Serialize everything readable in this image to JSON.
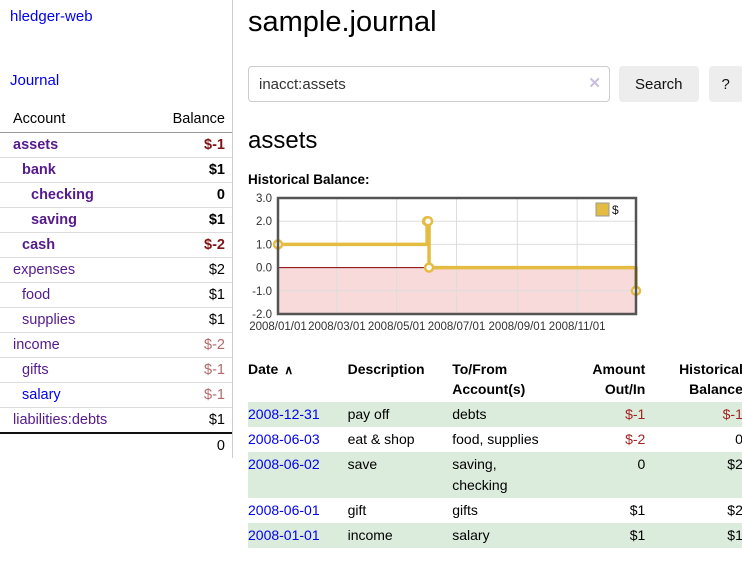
{
  "app": {
    "name": "hledger-web"
  },
  "colors": {
    "link_purple": "#551a8b",
    "link_blue": "#0000ee",
    "neg_dark": "#7f1414",
    "neg_table": "#a22323",
    "neg_muted": "#b06a6a",
    "text_black": "#000000",
    "row_green": "#dcecdc"
  },
  "sidebar": {
    "journal_link": "Journal",
    "accounts_table": {
      "headers": {
        "account": "Account",
        "balance": "Balance"
      },
      "rows": [
        {
          "name": "assets",
          "indent": 1,
          "bold": true,
          "balance": "$-1",
          "balance_color": "#7f1414",
          "link_color": "#551a8b"
        },
        {
          "name": "bank",
          "indent": 2,
          "bold": true,
          "balance": "$1",
          "balance_color": "#000000",
          "link_color": "#551a8b"
        },
        {
          "name": "checking",
          "indent": 3,
          "bold": true,
          "balance": "0",
          "balance_color": "#000000",
          "link_color": "#551a8b"
        },
        {
          "name": "saving",
          "indent": 3,
          "bold": true,
          "balance": "$1",
          "balance_color": "#000000",
          "link_color": "#551a8b"
        },
        {
          "name": "cash",
          "indent": 2,
          "bold": true,
          "balance": "$-2",
          "balance_color": "#7f1414",
          "link_color": "#551a8b"
        },
        {
          "name": "expenses",
          "indent": 1,
          "bold": false,
          "balance": "$2",
          "balance_color": "#000000",
          "link_color": "#551a8b"
        },
        {
          "name": "food",
          "indent": 2,
          "bold": false,
          "balance": "$1",
          "balance_color": "#000000",
          "link_color": "#551a8b"
        },
        {
          "name": "supplies",
          "indent": 2,
          "bold": false,
          "balance": "$1",
          "balance_color": "#000000",
          "link_color": "#551a8b"
        },
        {
          "name": "income",
          "indent": 1,
          "bold": false,
          "balance": "$-2",
          "balance_color": "#b06a6a",
          "link_color": "#551a8b"
        },
        {
          "name": "gifts",
          "indent": 2,
          "bold": false,
          "balance": "$-1",
          "balance_color": "#b06a6a",
          "link_color": "#551a8b"
        },
        {
          "name": "salary",
          "indent": 2,
          "bold": false,
          "balance": "$-1",
          "balance_color": "#b06a6a",
          "link_color": "#0000ee"
        },
        {
          "name": "liabilities:debts",
          "indent": 1,
          "bold": false,
          "balance": "$1",
          "balance_color": "#000000",
          "link_color": "#551a8b"
        }
      ],
      "total": "0"
    }
  },
  "main": {
    "title": "sample.journal",
    "search": {
      "value": "inacct:assets",
      "clear_icon": "✕",
      "button_label": "Search",
      "help_label": "?"
    },
    "account_heading": "assets",
    "chart_label": "Historical Balance:"
  },
  "chart_data": {
    "type": "line",
    "step": true,
    "title": "Historical Balance",
    "legend": "$",
    "legend_position": "top-right",
    "grid": true,
    "series": [
      {
        "name": "$",
        "color": "#e4bc42",
        "points": [
          [
            "2008-01-01",
            1
          ],
          [
            "2008-06-01",
            2
          ],
          [
            "2008-06-02",
            2
          ],
          [
            "2008-06-03",
            0
          ],
          [
            "2008-12-31",
            -1
          ]
        ]
      }
    ],
    "x_range": [
      "2008-01-01",
      "2008-12-31"
    ],
    "ylim": [
      -2,
      3
    ],
    "yticks": [
      3,
      2,
      1,
      0,
      -1,
      -2
    ],
    "ytick_labels": [
      "3.0",
      "2.0",
      "1.0",
      "0.0",
      "-1.0",
      "-2.0"
    ],
    "xticks": [
      "2008-01-01",
      "2008-03-01",
      "2008-05-01",
      "2008-07-01",
      "2008-09-01",
      "2008-11-01"
    ],
    "xtick_labels": [
      "2008/01/01",
      "2008/03/01",
      "2008/05/01",
      "2008/07/01",
      "2008/09/01",
      "2008/11/01"
    ],
    "negative_fill": "#f9dada",
    "zero_line_color": "#8b0000",
    "grid_color": "#dddddd",
    "border_color": "#545454"
  },
  "register_table": {
    "headers": {
      "date": "Date",
      "sort_icon": "∧",
      "description": "Description",
      "accounts": "To/From Account(s)",
      "amount": "Amount Out/In",
      "balance": "Historical Balance"
    },
    "rows": [
      {
        "date": "2008-12-31",
        "description": "pay off",
        "accounts": "debts",
        "amount": "$-1",
        "amount_color": "#a22323",
        "balance": "$-1",
        "balance_color": "#a22323",
        "shaded": true
      },
      {
        "date": "2008-06-03",
        "description": "eat & shop",
        "accounts": "food, supplies",
        "amount": "$-2",
        "amount_color": "#a22323",
        "balance": "0",
        "balance_color": "#000000",
        "shaded": false
      },
      {
        "date": "2008-06-02",
        "description": "save",
        "accounts": "saving, checking",
        "amount": "0",
        "amount_color": "#000000",
        "balance": "$2",
        "balance_color": "#000000",
        "shaded": true
      },
      {
        "date": "2008-06-01",
        "description": "gift",
        "accounts": "gifts",
        "amount": "$1",
        "amount_color": "#000000",
        "balance": "$2",
        "balance_color": "#000000",
        "shaded": false
      },
      {
        "date": "2008-01-01",
        "description": "income",
        "accounts": "salary",
        "amount": "$1",
        "amount_color": "#000000",
        "balance": "$1",
        "balance_color": "#000000",
        "shaded": true
      }
    ]
  }
}
